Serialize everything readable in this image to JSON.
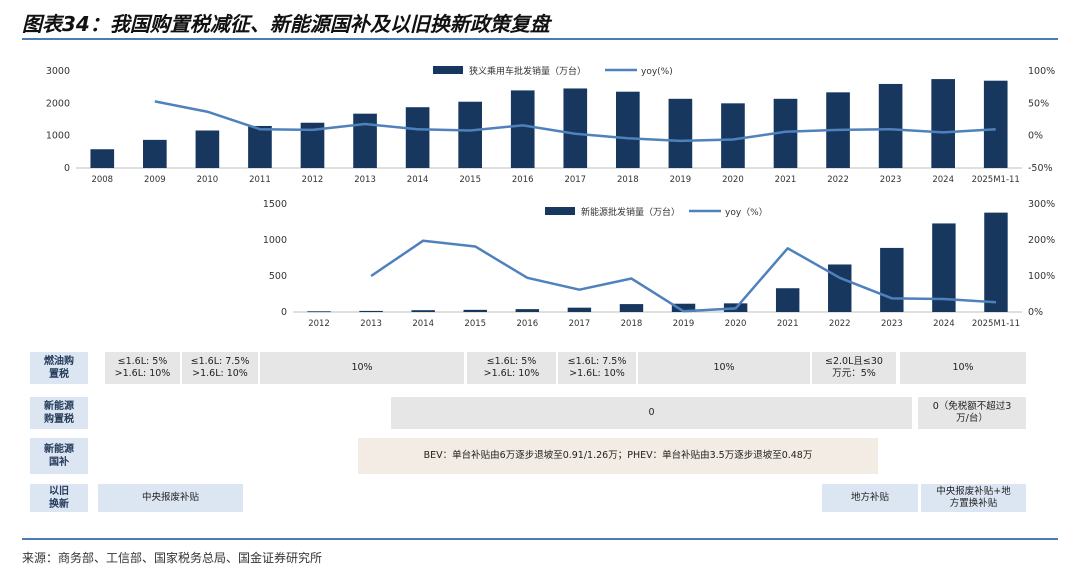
{
  "title": "图表34：我国购置税减征、新能源国补及以旧换新政策复盘",
  "source": "来源：商务部、工信部、国家税务总局、国金证券研究所",
  "colors": {
    "bar": "#17375e",
    "line": "#4f81bd",
    "rule": "#4d7bb4"
  },
  "chart_data": [
    {
      "type": "bar",
      "categories": [
        "2008",
        "2009",
        "2010",
        "2011",
        "2012",
        "2013",
        "2014",
        "2015",
        "2016",
        "2017",
        "2018",
        "2019",
        "2020",
        "2021",
        "2022",
        "2023",
        "2024",
        "2025M1-11"
      ],
      "series": [
        {
          "name": "狭义乘用车批发销量（万台）",
          "type": "bar",
          "axis": "left",
          "values": [
            580,
            870,
            1160,
            1300,
            1400,
            1680,
            1880,
            2050,
            2400,
            2460,
            2360,
            2140,
            2000,
            2140,
            2340,
            2600,
            2750,
            2700
          ]
        },
        {
          "name": "yoy(%)",
          "type": "line",
          "axis": "right",
          "values": [
            null,
            53,
            37,
            10,
            9,
            18,
            10,
            8,
            16,
            3,
            -4,
            -8,
            -6,
            6,
            9,
            10,
            5,
            10
          ]
        }
      ],
      "y_left": {
        "ticks": [
          "0",
          "1000",
          "2000",
          "3000"
        ],
        "range": [
          0,
          3000
        ]
      },
      "y_right": {
        "ticks": [
          "-50%",
          "0%",
          "50%",
          "100%"
        ],
        "range": [
          -50,
          100
        ]
      }
    },
    {
      "type": "bar",
      "categories": [
        "2012",
        "2013",
        "2014",
        "2015",
        "2016",
        "2017",
        "2018",
        "2019",
        "2020",
        "2021",
        "2022",
        "2023",
        "2024",
        "2025M1-11"
      ],
      "series": [
        {
          "name": "新能源批发销量（万台）",
          "type": "bar",
          "axis": "left",
          "values": [
            10,
            15,
            25,
            30,
            40,
            60,
            110,
            115,
            120,
            330,
            660,
            890,
            1230,
            1380
          ]
        },
        {
          "name": "yoy（%）",
          "type": "line",
          "axis": "right",
          "values": [
            null,
            100,
            198,
            182,
            95,
            62,
            93,
            2,
            10,
            177,
            95,
            38,
            36,
            27
          ]
        }
      ],
      "y_left": {
        "ticks": [
          "0",
          "500",
          "1000",
          "1500"
        ],
        "range": [
          0,
          1500
        ]
      },
      "y_right": {
        "ticks": [
          "0%",
          "100%",
          "200%",
          "300%"
        ],
        "range": [
          0,
          300
        ]
      }
    }
  ],
  "policy_table": {
    "row_labels": [
      "燃油购\n置税",
      "新能源\n购置税",
      "新能源\n国补",
      "以旧\n换新"
    ],
    "rows": [
      [
        {
          "text": "≤1.6L: 5%\n>1.6L: 10%"
        },
        {
          "text": "≤1.6L: 7.5%\n>1.6L: 10%"
        },
        {
          "text": "10%"
        },
        {
          "text": "≤1.6L: 5%\n>1.6L: 10%"
        },
        {
          "text": "≤1.6L: 7.5%\n>1.6L: 10%"
        },
        {
          "text": "10%"
        },
        {
          "text": "≤2.0L且≤30\n万元：5%"
        },
        {
          "text": "10%"
        }
      ],
      [
        {
          "text": "0"
        },
        {
          "text": "0（免税额不超过3\n万/台）"
        }
      ],
      [
        {
          "text": "BEV：单台补贴由6万逐步退坡至0.91/1.26万；PHEV：单台补贴由3.5万逐步退坡至0.48万"
        }
      ],
      [
        {
          "text": "中央报废补贴"
        },
        {
          "text": "地方补贴"
        },
        {
          "text": "中央报废补贴+地\n方置换补贴"
        }
      ]
    ]
  }
}
